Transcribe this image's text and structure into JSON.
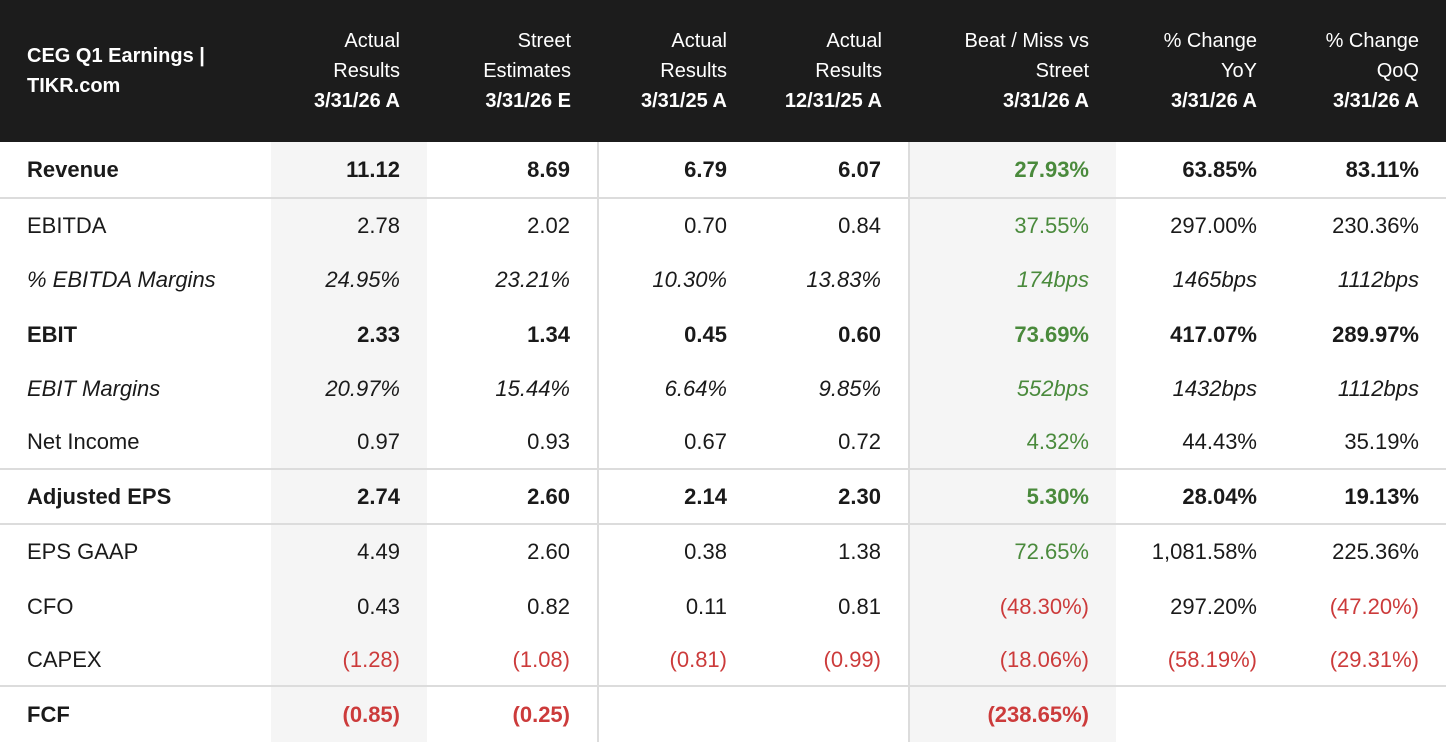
{
  "header": {
    "title": "CEG Q1 Earnings | TIKR.com",
    "columns": [
      {
        "lines": [
          "Actual",
          "Results"
        ],
        "date": "3/31/26 A"
      },
      {
        "lines": [
          "Street",
          "Estimates"
        ],
        "date": "3/31/26 E"
      },
      {
        "lines": [
          "Actual",
          "Results"
        ],
        "date": "3/31/25 A"
      },
      {
        "lines": [
          "Actual",
          "Results"
        ],
        "date": "12/31/25 A"
      },
      {
        "lines": [
          "Beat / Miss vs",
          "Street"
        ],
        "date": "3/31/26 A"
      },
      {
        "lines": [
          "% Change",
          "YoY"
        ],
        "date": "3/31/26 A"
      },
      {
        "lines": [
          "% Change",
          "QoQ"
        ],
        "date": "3/31/26 A"
      }
    ]
  },
  "rows": [
    {
      "label": "Revenue",
      "values": [
        "11.12",
        "8.69",
        "6.79",
        "6.07",
        "27.93%",
        "63.85%",
        "83.11%"
      ]
    },
    {
      "label": "EBITDA",
      "values": [
        "2.78",
        "2.02",
        "0.70",
        "0.84",
        "37.55%",
        "297.00%",
        "230.36%"
      ]
    },
    {
      "label": "% EBITDA Margins",
      "values": [
        "24.95%",
        "23.21%",
        "10.30%",
        "13.83%",
        "174bps",
        "1465bps",
        "1112bps"
      ]
    },
    {
      "label": "EBIT",
      "values": [
        "2.33",
        "1.34",
        "0.45",
        "0.60",
        "73.69%",
        "417.07%",
        "289.97%"
      ]
    },
    {
      "label": "EBIT Margins",
      "values": [
        "20.97%",
        "15.44%",
        "6.64%",
        "9.85%",
        "552bps",
        "1432bps",
        "1112bps"
      ]
    },
    {
      "label": "Net Income",
      "values": [
        "0.97",
        "0.93",
        "0.67",
        "0.72",
        "4.32%",
        "44.43%",
        "35.19%"
      ]
    },
    {
      "label": "Adjusted EPS",
      "values": [
        "2.74",
        "2.60",
        "2.14",
        "2.30",
        "5.30%",
        "28.04%",
        "19.13%"
      ]
    },
    {
      "label": "EPS GAAP",
      "values": [
        "4.49",
        "2.60",
        "0.38",
        "1.38",
        "72.65%",
        "1,081.58%",
        "225.36%"
      ]
    },
    {
      "label": "CFO",
      "values": [
        "0.43",
        "0.82",
        "0.11",
        "0.81",
        "(48.30%)",
        "297.20%",
        "(47.20%)"
      ]
    },
    {
      "label": "CAPEX",
      "values": [
        "(1.28)",
        "(1.08)",
        "(0.81)",
        "(0.99)",
        "(18.06%)",
        "(58.19%)",
        "(29.31%)"
      ]
    },
    {
      "label": "FCF",
      "values": [
        "(0.85)",
        "(0.25)",
        "",
        "",
        "(238.65%)",
        "",
        ""
      ]
    }
  ],
  "colors": {
    "header_bg": "#1c1c1c",
    "positive": "#4a8a3c",
    "negative": "#cc3b3b",
    "shaded_column": "#f5f5f5"
  }
}
